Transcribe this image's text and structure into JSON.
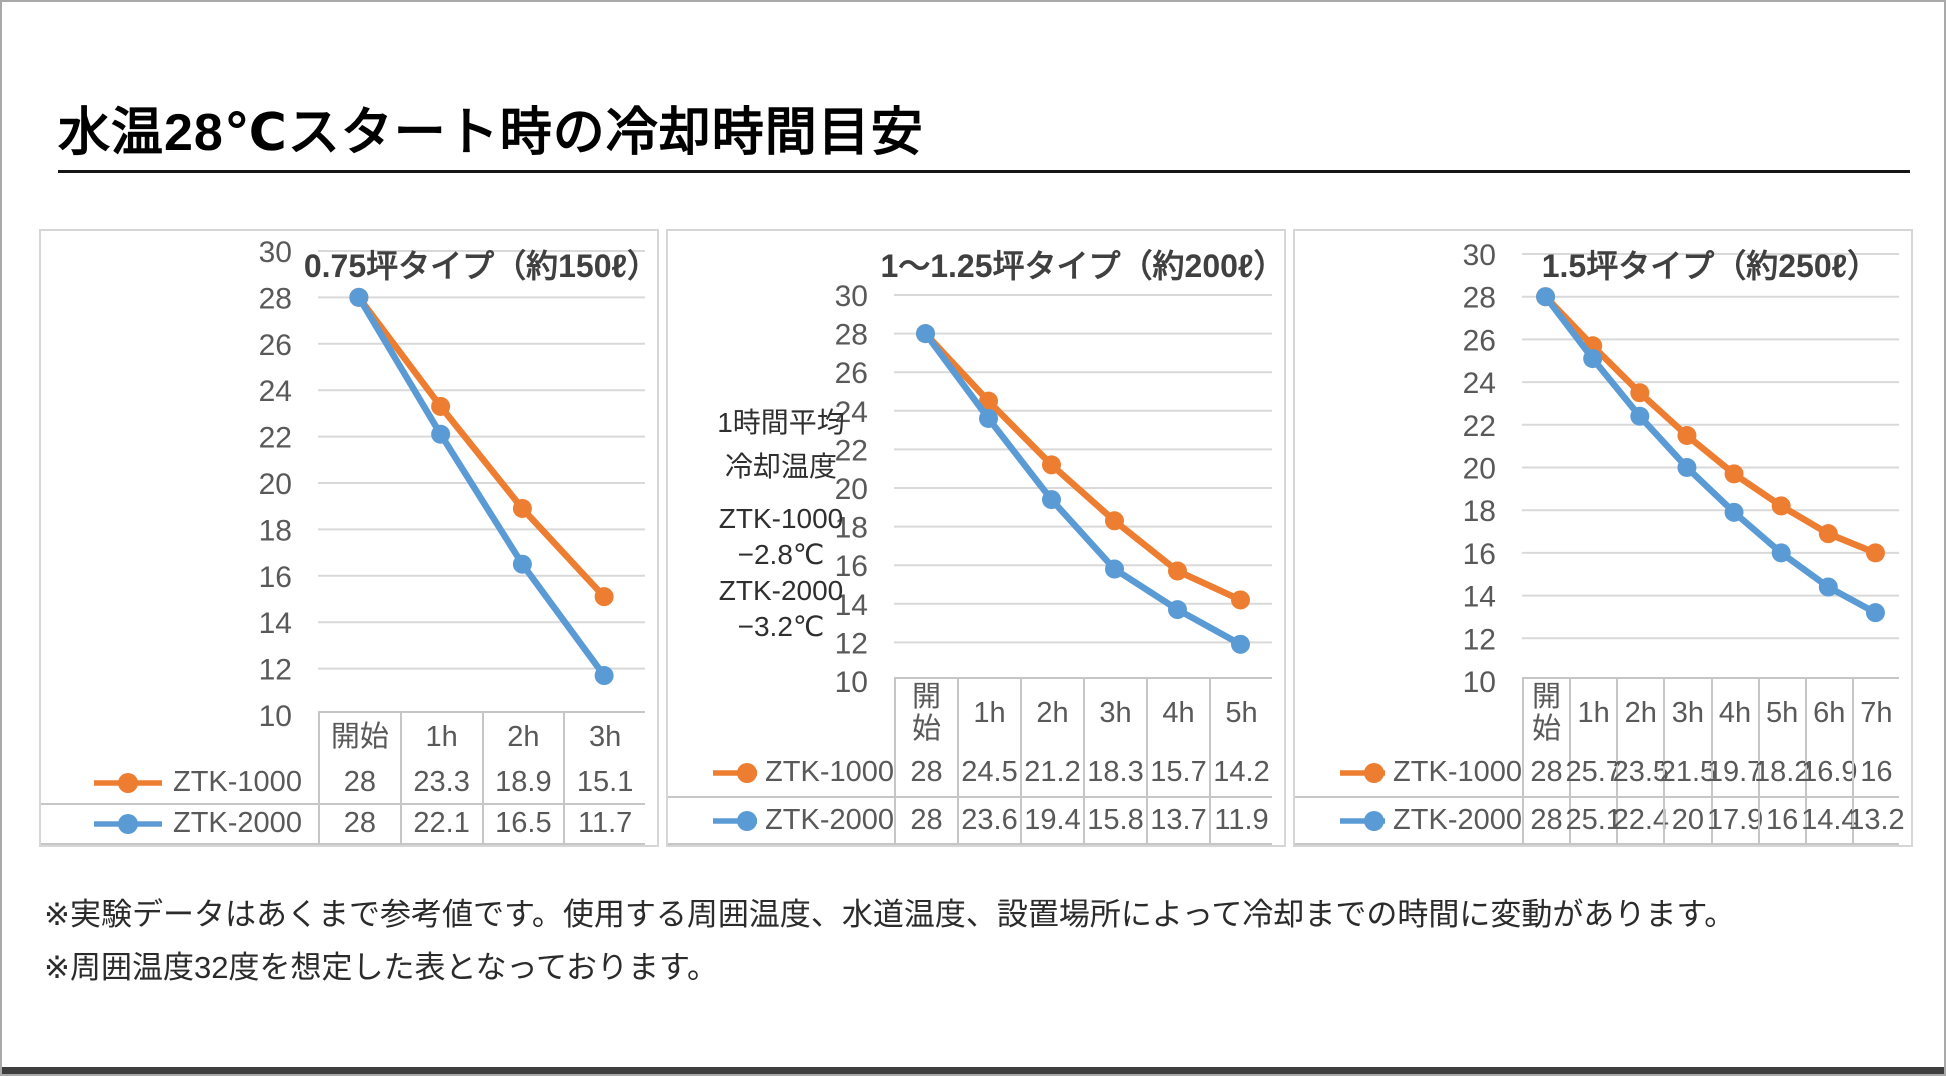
{
  "page": {
    "title": "水温28℃スタート時の冷却時間目安",
    "notes": [
      "※実験データはあくまで参考値です。使用する周囲温度、水道温度、設置場所によって冷却までの時間に変動があります。",
      "※周囲温度32度を想定した表となっております。"
    ]
  },
  "colors": {
    "series_ztk1000": "#ED7D31",
    "series_ztk2000": "#5B9BD5",
    "gridline": "#D9D9D9",
    "chart_border": "#D6D6D6",
    "table_border": "#C6C6C6",
    "axis_text": "#595959",
    "chart_title_text": "#404040",
    "page_title_text": "#000000",
    "bottom_bar": "#3F3F3F"
  },
  "chart_data": [
    {
      "type": "line",
      "title": "0.75坪タイプ（約150ℓ）",
      "categories": [
        "開始",
        "1h",
        "2h",
        "3h"
      ],
      "series": [
        {
          "name": "ZTK-1000",
          "color": "#ED7D31",
          "values": [
            28,
            23.3,
            18.9,
            15.1
          ]
        },
        {
          "name": "ZTK-2000",
          "color": "#5B9BD5",
          "values": [
            28,
            22.1,
            16.5,
            11.7
          ]
        }
      ],
      "ylim": [
        10,
        30
      ],
      "ytick_step": 2,
      "grid": true,
      "legend_position": "data-table-left"
    },
    {
      "type": "line",
      "title": "1～1.25坪タイプ（約200ℓ）",
      "annotation": {
        "block1": [
          "1時間平均",
          "冷却温度"
        ],
        "block2": [
          "ZTK-1000",
          "−2.8℃",
          "ZTK-2000",
          "−3.2℃"
        ]
      },
      "categories": [
        "開始",
        "1h",
        "2h",
        "3h",
        "4h",
        "5h"
      ],
      "series": [
        {
          "name": "ZTK-1000",
          "color": "#ED7D31",
          "values": [
            28,
            24.5,
            21.2,
            18.3,
            15.7,
            14.2
          ]
        },
        {
          "name": "ZTK-2000",
          "color": "#5B9BD5",
          "values": [
            28,
            23.6,
            19.4,
            15.8,
            13.7,
            11.9
          ]
        }
      ],
      "ylim": [
        10,
        30
      ],
      "ytick_step": 2,
      "grid": true,
      "legend_position": "data-table-left"
    },
    {
      "type": "line",
      "title": "1.5坪タイプ（約250ℓ）",
      "categories": [
        "開始",
        "1h",
        "2h",
        "3h",
        "4h",
        "5h",
        "6h",
        "7h"
      ],
      "series": [
        {
          "name": "ZTK-1000",
          "color": "#ED7D31",
          "values": [
            28,
            25.7,
            23.5,
            21.5,
            19.7,
            18.2,
            16.9,
            16
          ]
        },
        {
          "name": "ZTK-2000",
          "color": "#5B9BD5",
          "values": [
            28,
            25.1,
            22.4,
            20,
            17.9,
            16,
            14.4,
            13.2
          ]
        }
      ],
      "ylim": [
        10,
        30
      ],
      "ytick_step": 2,
      "grid": true,
      "legend_position": "data-table-left"
    }
  ]
}
